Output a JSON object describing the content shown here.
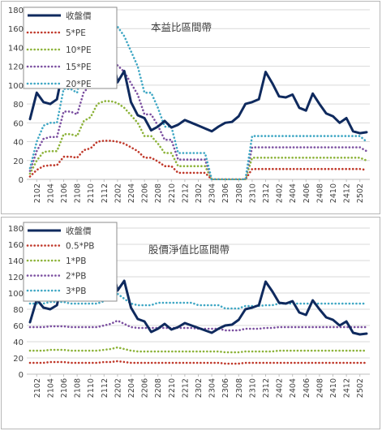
{
  "chart_data": [
    {
      "type": "line",
      "title": "本益比區間帶",
      "ylim": [
        0,
        180
      ],
      "y_ticks": [
        0,
        20,
        40,
        60,
        80,
        100,
        120,
        140,
        160,
        180
      ],
      "grid": true,
      "legend_position": "top-left",
      "x_tick_labels": [
        "2102",
        "2104",
        "2106",
        "2108",
        "2110",
        "2112",
        "2202",
        "2204",
        "2206",
        "2208",
        "2210",
        "2212",
        "2302",
        "2304",
        "2306",
        "2308",
        "2310",
        "2312",
        "2402",
        "2404",
        "2406",
        "2408",
        "2410",
        "2412",
        "2502"
      ],
      "x": [
        "2101",
        "2102",
        "2103",
        "2104",
        "2105",
        "2106",
        "2107",
        "2108",
        "2109",
        "2110",
        "2111",
        "2112",
        "2201",
        "2202",
        "2203",
        "2204",
        "2205",
        "2206",
        "2207",
        "2208",
        "2209",
        "2210",
        "2211",
        "2212",
        "2301",
        "2302",
        "2303",
        "2304",
        "2305",
        "2306",
        "2307",
        "2308",
        "2309",
        "2310",
        "2311",
        "2312",
        "2401",
        "2402",
        "2403",
        "2404",
        "2405",
        "2406",
        "2407",
        "2408",
        "2409",
        "2410",
        "2411",
        "2412",
        "2501",
        "2502",
        "2503"
      ],
      "series": [
        {
          "name": "收盤價",
          "color": "#0f2a5e",
          "style": "solid",
          "values": [
            64,
            92,
            82,
            80,
            85,
            120,
            128,
            118,
            100,
            112,
            122,
            140,
            141,
            103,
            115,
            82,
            68,
            65,
            52,
            56,
            62,
            55,
            58,
            63,
            60,
            57,
            54,
            51,
            56,
            60,
            61,
            67,
            80,
            82,
            85,
            114,
            102,
            88,
            87,
            90,
            76,
            73,
            91,
            80,
            70,
            67,
            60,
            65,
            51,
            49,
            50
          ]
        },
        {
          "name": "5*PE",
          "color": "#c0392b",
          "style": "dotted",
          "values": [
            3,
            10,
            14,
            15,
            15,
            24,
            24,
            23,
            31,
            33,
            40,
            41,
            41,
            40,
            38,
            34,
            30,
            23,
            23,
            19,
            14,
            14,
            7,
            7,
            7,
            7,
            7,
            0,
            0,
            0,
            0,
            0,
            0,
            11,
            11,
            11,
            11,
            11,
            11,
            11,
            11,
            11,
            11,
            11,
            11,
            11,
            11,
            11,
            11,
            11,
            10
          ]
        },
        {
          "name": "10*PE",
          "color": "#8db33a",
          "style": "dotted",
          "values": [
            6,
            20,
            29,
            30,
            30,
            48,
            48,
            46,
            62,
            66,
            80,
            83,
            83,
            81,
            76,
            68,
            60,
            46,
            46,
            38,
            28,
            28,
            14,
            14,
            14,
            14,
            14,
            0,
            0,
            0,
            0,
            0,
            0,
            23,
            23,
            23,
            23,
            23,
            23,
            23,
            23,
            23,
            23,
            23,
            23,
            23,
            23,
            23,
            23,
            23,
            20
          ]
        },
        {
          "name": "15*PE",
          "color": "#7b4fa0",
          "style": "dotted",
          "values": [
            9,
            30,
            43,
            45,
            45,
            72,
            72,
            69,
            93,
            99,
            120,
            124,
            124,
            121,
            114,
            102,
            90,
            69,
            69,
            57,
            42,
            42,
            21,
            21,
            21,
            21,
            21,
            0,
            0,
            0,
            0,
            0,
            0,
            34,
            34,
            34,
            34,
            34,
            34,
            34,
            34,
            34,
            34,
            34,
            34,
            34,
            34,
            34,
            34,
            34,
            30
          ]
        },
        {
          "name": "20*PE",
          "color": "#3fa7c4",
          "style": "dotted",
          "values": [
            12,
            40,
            57,
            60,
            60,
            96,
            96,
            92,
            124,
            132,
            160,
            165,
            165,
            162,
            152,
            136,
            120,
            92,
            92,
            76,
            56,
            56,
            28,
            28,
            28,
            28,
            28,
            0,
            0,
            0,
            0,
            0,
            0,
            46,
            46,
            46,
            46,
            46,
            46,
            46,
            46,
            46,
            46,
            46,
            46,
            46,
            46,
            46,
            46,
            46,
            40
          ]
        }
      ]
    },
    {
      "type": "line",
      "title": "股價淨值比區間帶",
      "ylim": [
        0,
        180
      ],
      "y_ticks": [
        0,
        20,
        40,
        60,
        80,
        100,
        120,
        140,
        160,
        180
      ],
      "grid": true,
      "legend_position": "top-left",
      "x_tick_labels": [
        "2102",
        "2104",
        "2106",
        "2108",
        "2110",
        "2112",
        "2202",
        "2204",
        "2206",
        "2208",
        "2210",
        "2212",
        "2302",
        "2304",
        "2306",
        "2308",
        "2310",
        "2312",
        "2402",
        "2404",
        "2406",
        "2408",
        "2410",
        "2412",
        "2502"
      ],
      "x": [
        "2101",
        "2102",
        "2103",
        "2104",
        "2105",
        "2106",
        "2107",
        "2108",
        "2109",
        "2110",
        "2111",
        "2112",
        "2201",
        "2202",
        "2203",
        "2204",
        "2205",
        "2206",
        "2207",
        "2208",
        "2209",
        "2210",
        "2211",
        "2212",
        "2301",
        "2302",
        "2303",
        "2304",
        "2305",
        "2306",
        "2307",
        "2308",
        "2309",
        "2310",
        "2311",
        "2312",
        "2401",
        "2402",
        "2403",
        "2404",
        "2405",
        "2406",
        "2407",
        "2408",
        "2409",
        "2410",
        "2411",
        "2412",
        "2501",
        "2502",
        "2503"
      ],
      "series": [
        {
          "name": "收盤價",
          "color": "#0f2a5e",
          "style": "solid",
          "values": [
            64,
            92,
            82,
            80,
            85,
            120,
            128,
            118,
            100,
            112,
            122,
            140,
            141,
            103,
            115,
            82,
            68,
            65,
            52,
            56,
            62,
            55,
            58,
            63,
            60,
            57,
            54,
            51,
            56,
            60,
            61,
            67,
            80,
            82,
            85,
            114,
            102,
            88,
            87,
            90,
            76,
            73,
            91,
            80,
            70,
            67,
            60,
            65,
            51,
            49,
            50
          ]
        },
        {
          "name": "0.5*PB",
          "color": "#c0392b",
          "style": "dotted",
          "values": [
            14,
            14,
            14,
            15,
            15,
            15,
            14,
            14,
            14,
            14,
            14,
            15,
            15,
            16,
            15,
            14,
            14,
            14,
            14,
            14,
            14,
            14,
            14,
            14,
            14,
            14,
            14,
            14,
            14,
            13,
            13,
            13,
            14,
            14,
            14,
            14,
            14,
            14,
            14,
            14,
            14,
            14,
            14,
            14,
            14,
            14,
            14,
            14,
            14,
            14,
            14
          ]
        },
        {
          "name": "1*PB",
          "color": "#8db33a",
          "style": "dotted",
          "values": [
            29,
            29,
            29,
            30,
            30,
            30,
            29,
            29,
            29,
            29,
            29,
            30,
            31,
            33,
            31,
            29,
            28,
            28,
            28,
            28,
            28,
            28,
            28,
            28,
            28,
            28,
            28,
            28,
            28,
            27,
            27,
            27,
            28,
            28,
            28,
            28,
            28,
            29,
            29,
            29,
            29,
            29,
            29,
            29,
            29,
            29,
            29,
            29,
            29,
            29,
            29
          ]
        },
        {
          "name": "2*PB",
          "color": "#7b4fa0",
          "style": "dotted",
          "values": [
            58,
            58,
            58,
            59,
            59,
            59,
            58,
            58,
            58,
            58,
            58,
            60,
            62,
            66,
            62,
            58,
            57,
            57,
            57,
            57,
            57,
            57,
            57,
            57,
            57,
            56,
            56,
            56,
            56,
            54,
            54,
            54,
            56,
            56,
            56,
            57,
            57,
            58,
            58,
            58,
            58,
            58,
            58,
            58,
            58,
            58,
            58,
            58,
            58,
            58,
            58
          ]
        },
        {
          "name": "3*PB",
          "color": "#3fa7c4",
          "style": "dotted",
          "values": [
            87,
            87,
            87,
            89,
            89,
            89,
            87,
            87,
            87,
            87,
            87,
            90,
            93,
            99,
            93,
            87,
            85,
            85,
            85,
            88,
            88,
            88,
            88,
            88,
            88,
            85,
            85,
            85,
            85,
            81,
            81,
            81,
            84,
            84,
            84,
            85,
            85,
            87,
            87,
            87,
            87,
            87,
            87,
            87,
            87,
            87,
            87,
            87,
            87,
            87,
            87
          ]
        }
      ]
    }
  ]
}
